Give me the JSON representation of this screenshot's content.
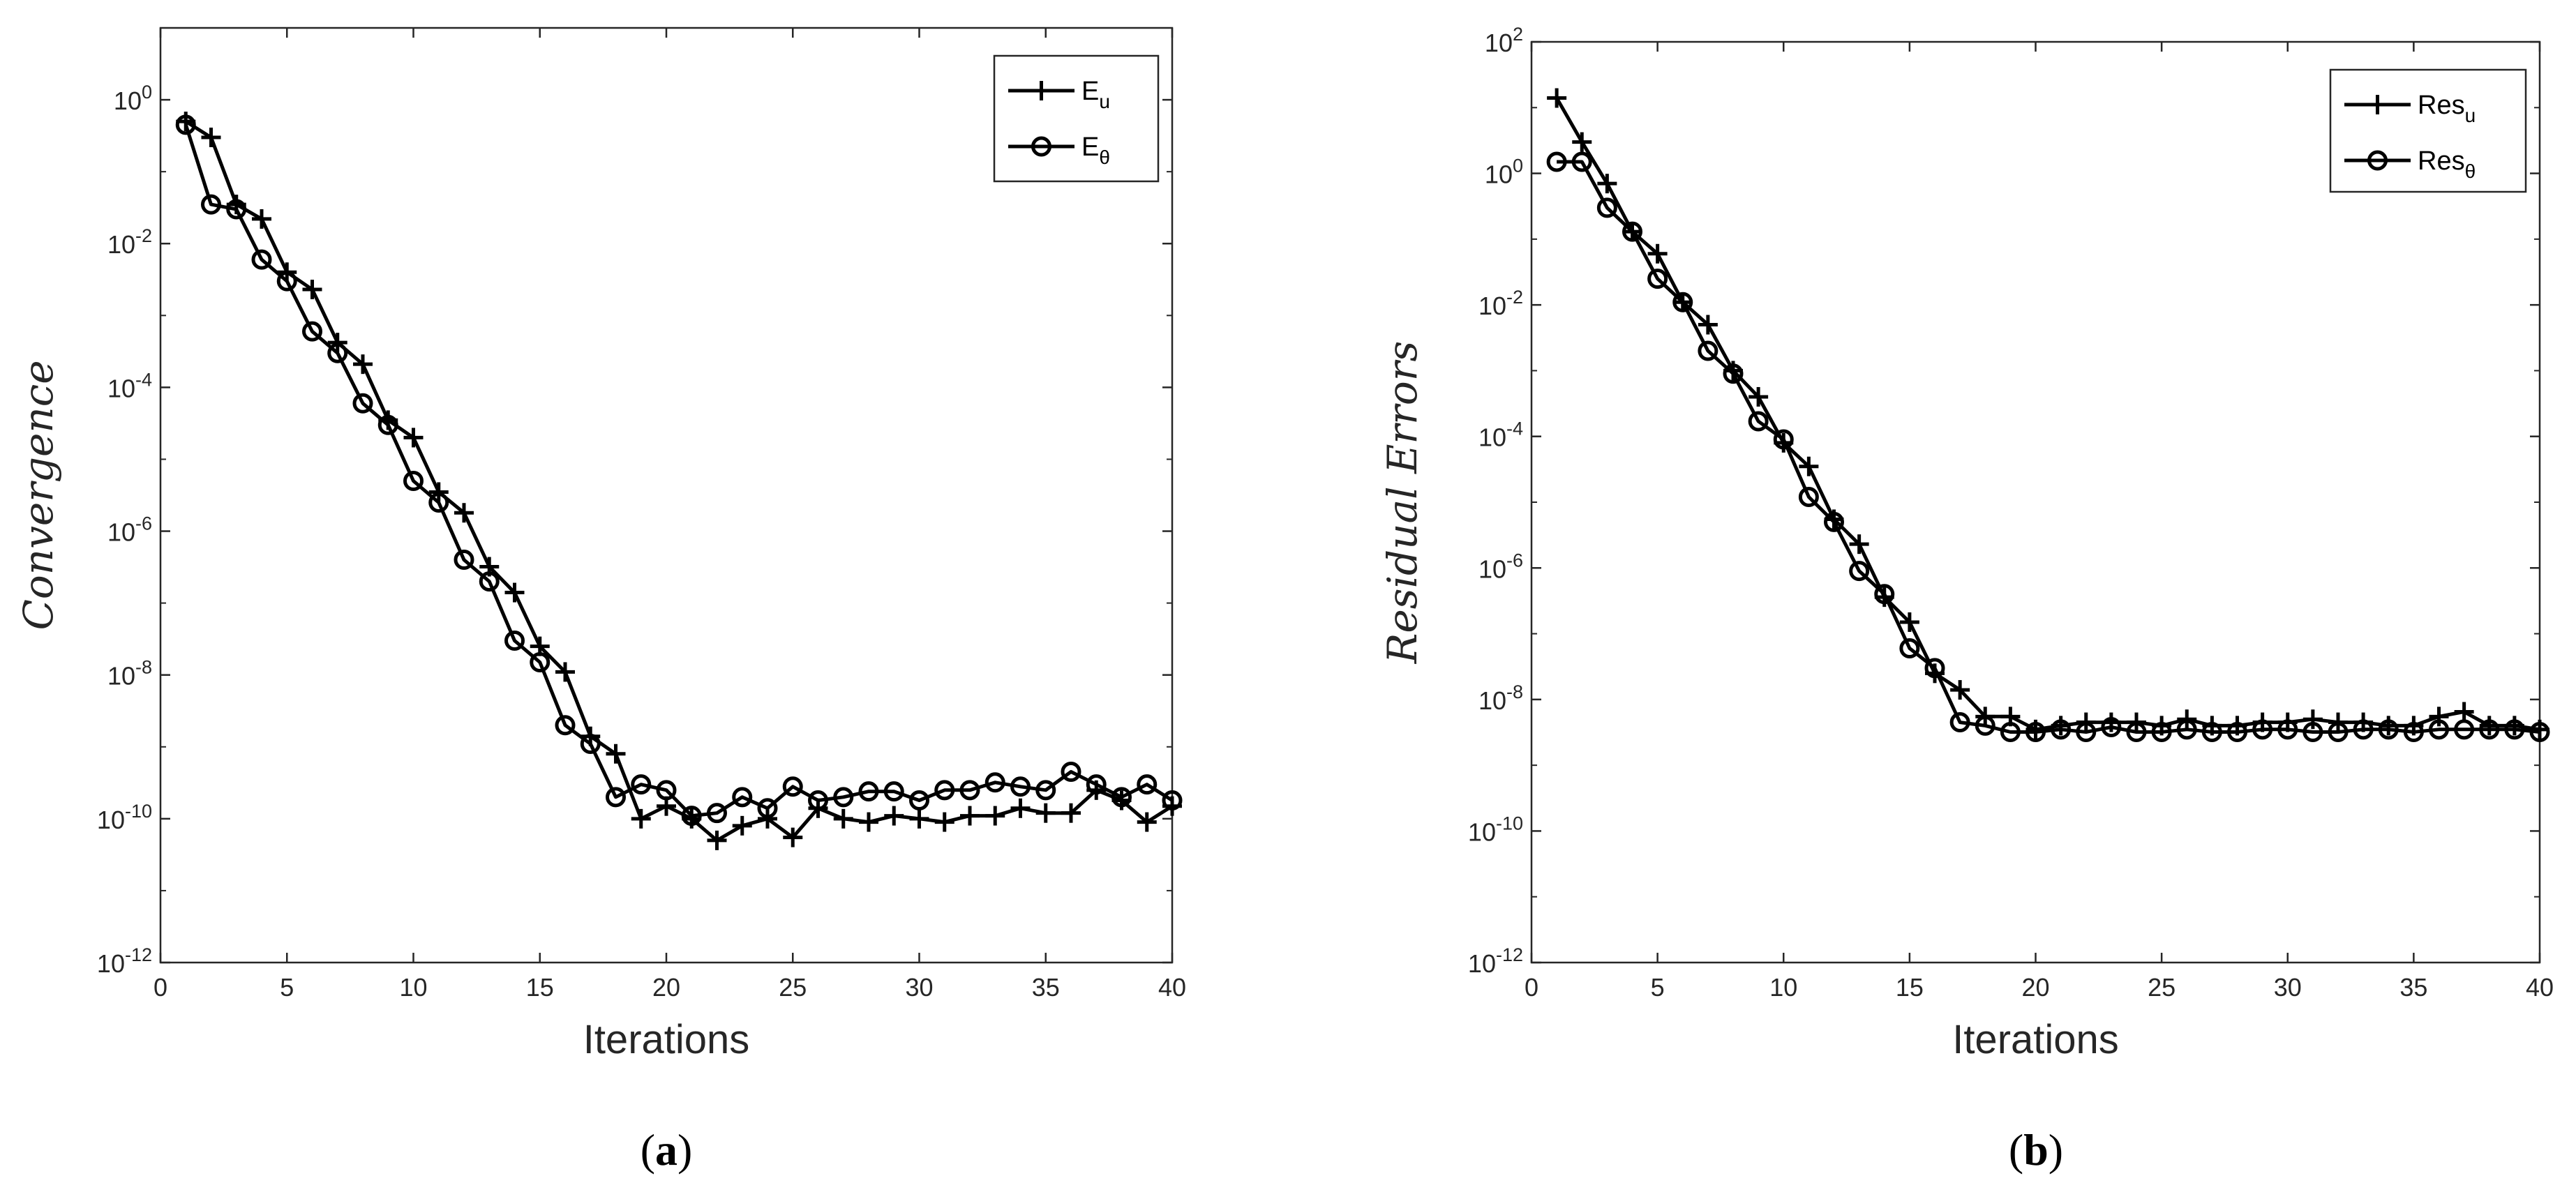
{
  "chart_data": [
    {
      "type": "line",
      "panel_label": "a",
      "xlabel": "Iterations",
      "ylabel": "Convergence",
      "xlim": [
        0,
        40
      ],
      "ylim": [
        1e-12,
        10
      ],
      "yscale": "log",
      "x_ticks": [
        0,
        5,
        10,
        15,
        20,
        25,
        30,
        35,
        40
      ],
      "y_ticks": [
        {
          "base": "10",
          "exp": "0",
          "v": 1
        },
        {
          "base": "10",
          "exp": "-2",
          "v": 0.01
        },
        {
          "base": "10",
          "exp": "-4",
          "v": 0.0001
        },
        {
          "base": "10",
          "exp": "-6",
          "v": 1e-06
        },
        {
          "base": "10",
          "exp": "-8",
          "v": 1e-08
        },
        {
          "base": "10",
          "exp": "-10",
          "v": 1e-10
        },
        {
          "base": "10",
          "exp": "-12",
          "v": 1e-12
        }
      ],
      "legend_position": "top-right",
      "series": [
        {
          "name": "E",
          "sub": "u",
          "marker": "plus",
          "x": [
            1,
            2,
            3,
            4,
            5,
            6,
            7,
            8,
            9,
            10,
            11,
            12,
            13,
            14,
            15,
            16,
            17,
            18,
            19,
            20,
            21,
            22,
            23,
            24,
            25,
            26,
            27,
            28,
            29,
            30,
            31,
            32,
            33,
            34,
            35,
            36,
            37,
            38,
            39,
            40
          ],
          "y": [
            0.5,
            0.3,
            0.035,
            0.022,
            0.004,
            0.0023,
            0.00042,
            0.00021,
            3.5e-05,
            2e-05,
            3.5e-06,
            1.8e-06,
            3.2e-07,
            1.4e-07,
            2.5e-08,
            1.1e-08,
            1.4e-09,
            8e-10,
            1e-10,
            1.5e-10,
            1e-10,
            5e-11,
            8e-11,
            1e-10,
            5.5e-11,
            1.4e-10,
            1e-10,
            9e-11,
            1.1e-10,
            1e-10,
            9e-11,
            1.1e-10,
            1.1e-10,
            1.4e-10,
            1.2e-10,
            1.2e-10,
            2.5e-10,
            1.8e-10,
            9e-11,
            1.5e-10
          ]
        },
        {
          "name": "E",
          "sub": "θ",
          "marker": "circle",
          "x": [
            1,
            2,
            3,
            4,
            5,
            6,
            7,
            8,
            9,
            10,
            11,
            12,
            13,
            14,
            15,
            16,
            17,
            18,
            19,
            20,
            21,
            22,
            23,
            24,
            25,
            26,
            27,
            28,
            29,
            30,
            31,
            32,
            33,
            34,
            35,
            36,
            37,
            38,
            39,
            40
          ],
          "y": [
            0.45,
            0.035,
            0.03,
            0.006,
            0.003,
            0.0006,
            0.0003,
            6e-05,
            3e-05,
            5e-06,
            2.5e-06,
            4e-07,
            2e-07,
            3e-08,
            1.5e-08,
            2e-09,
            1.1e-09,
            2e-10,
            3e-10,
            2.5e-10,
            1.1e-10,
            1.2e-10,
            2e-10,
            1.4e-10,
            2.8e-10,
            1.8e-10,
            2e-10,
            2.4e-10,
            2.4e-10,
            1.8e-10,
            2.5e-10,
            2.5e-10,
            3.2e-10,
            2.8e-10,
            2.5e-10,
            4.5e-10,
            3e-10,
            2e-10,
            3e-10,
            1.8e-10
          ]
        }
      ]
    },
    {
      "type": "line",
      "panel_label": "b",
      "xlabel": "Iterations",
      "ylabel": "Residual Errors",
      "xlim": [
        0,
        40
      ],
      "ylim": [
        1e-12,
        100
      ],
      "yscale": "log",
      "x_ticks": [
        0,
        5,
        10,
        15,
        20,
        25,
        30,
        35,
        40
      ],
      "y_ticks": [
        {
          "base": "10",
          "exp": "2",
          "v": 100
        },
        {
          "base": "10",
          "exp": "0",
          "v": 1
        },
        {
          "base": "10",
          "exp": "-2",
          "v": 0.01
        },
        {
          "base": "10",
          "exp": "-4",
          "v": 0.0001
        },
        {
          "base": "10",
          "exp": "-6",
          "v": 1e-06
        },
        {
          "base": "10",
          "exp": "-8",
          "v": 1e-08
        },
        {
          "base": "10",
          "exp": "-10",
          "v": 1e-10
        },
        {
          "base": "10",
          "exp": "-12",
          "v": 1e-12
        }
      ],
      "legend_position": "top-right",
      "series": [
        {
          "name": "Res",
          "sub": "u",
          "marker": "plus",
          "x": [
            1,
            2,
            3,
            4,
            5,
            6,
            7,
            8,
            9,
            10,
            11,
            12,
            13,
            14,
            15,
            16,
            17,
            18,
            19,
            20,
            21,
            22,
            23,
            24,
            25,
            26,
            27,
            28,
            29,
            30,
            31,
            32,
            33,
            34,
            35,
            36,
            37,
            38,
            39,
            40
          ],
          "y": [
            14,
            3,
            0.7,
            0.13,
            0.06,
            0.011,
            0.005,
            0.001,
            0.0004,
            8e-05,
            3.5e-05,
            5.5e-06,
            2.3e-06,
            3.6e-07,
            1.5e-07,
            2.5e-08,
            1.4e-08,
            5.5e-09,
            5.5e-09,
            3.5e-09,
            4e-09,
            4.5e-09,
            4.5e-09,
            4.5e-09,
            4e-09,
            5e-09,
            4e-09,
            4e-09,
            4.5e-09,
            4.5e-09,
            5e-09,
            4.5e-09,
            4.5e-09,
            4e-09,
            4e-09,
            5.5e-09,
            6.5e-09,
            4e-09,
            4e-09,
            3.5e-09
          ]
        },
        {
          "name": "Res",
          "sub": "θ",
          "marker": "circle",
          "x": [
            1,
            2,
            3,
            4,
            5,
            6,
            7,
            8,
            9,
            10,
            11,
            12,
            13,
            14,
            15,
            16,
            17,
            18,
            19,
            20,
            21,
            22,
            23,
            24,
            25,
            26,
            27,
            28,
            29,
            30,
            31,
            32,
            33,
            34,
            35,
            36,
            37,
            38,
            39,
            40
          ],
          "y": [
            1.5,
            1.5,
            0.3,
            0.13,
            0.025,
            0.011,
            0.002,
            0.0009,
            0.00017,
            9e-05,
            1.2e-05,
            5e-06,
            9e-07,
            4e-07,
            6e-08,
            3e-08,
            4.5e-09,
            4e-09,
            3.2e-09,
            3.2e-09,
            3.5e-09,
            3.2e-09,
            3.8e-09,
            3.2e-09,
            3.2e-09,
            3.5e-09,
            3.2e-09,
            3.2e-09,
            3.5e-09,
            3.5e-09,
            3.2e-09,
            3.2e-09,
            3.5e-09,
            3.5e-09,
            3.2e-09,
            3.5e-09,
            3.5e-09,
            3.5e-09,
            3.5e-09,
            3.2e-09
          ]
        }
      ]
    }
  ]
}
